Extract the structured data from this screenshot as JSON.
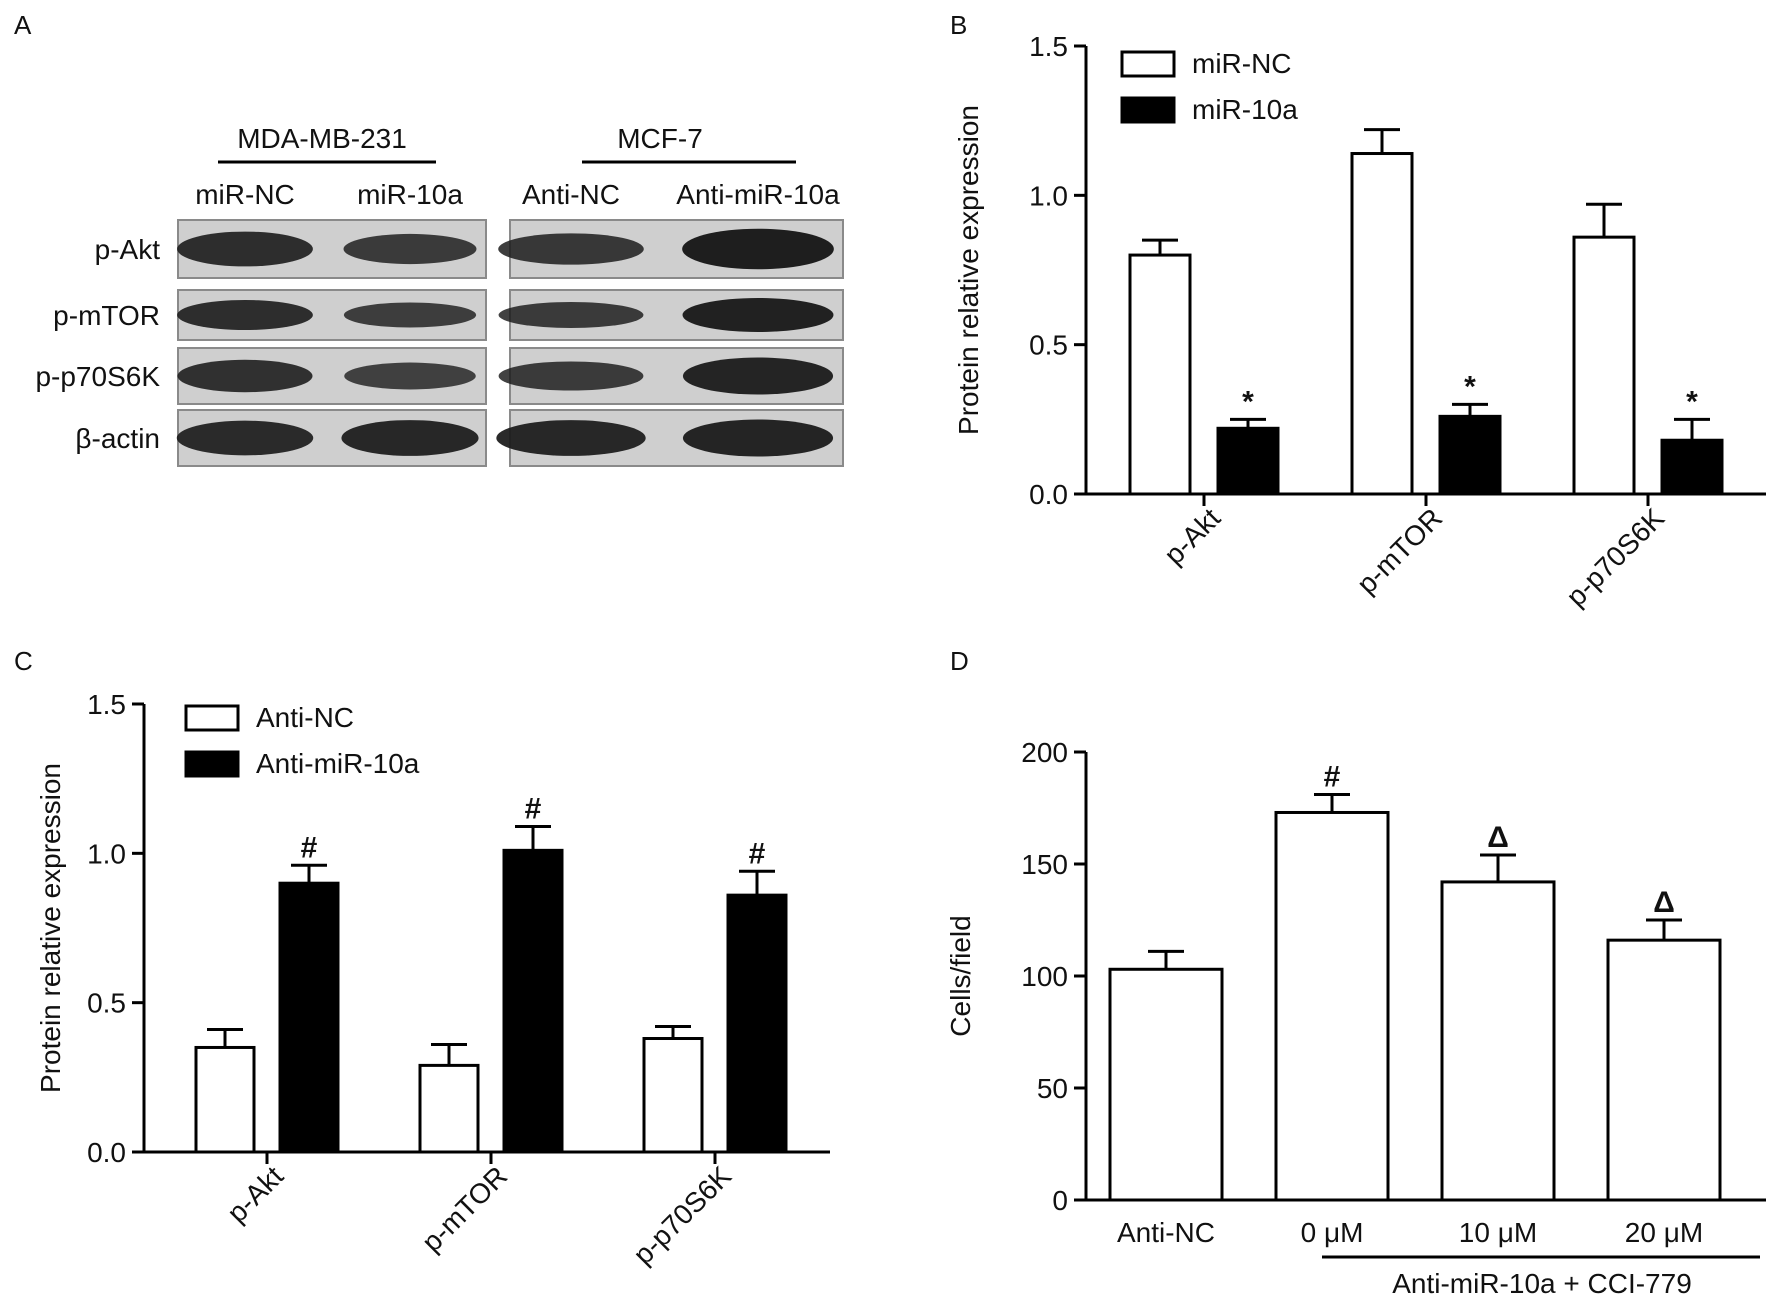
{
  "panels": {
    "a": {
      "letter": "A",
      "groups": [
        {
          "name": "MDA-MB-231",
          "lanes": [
            "miR-NC",
            "miR-10a"
          ]
        },
        {
          "name": "MCF-7",
          "lanes": [
            "Anti-NC",
            "Anti-miR-10a"
          ]
        }
      ],
      "rows": [
        "p-Akt",
        "p-mTOR",
        "p-p70S6K",
        "β-actin"
      ],
      "band_intensity": [
        [
          0.7,
          0.5,
          0.55,
          0.95
        ],
        [
          0.7,
          0.45,
          0.5,
          0.9
        ],
        [
          0.65,
          0.4,
          0.5,
          0.85
        ],
        [
          0.75,
          0.8,
          0.8,
          0.85
        ]
      ]
    },
    "b": {
      "letter": "B"
    },
    "c": {
      "letter": "C"
    },
    "d": {
      "letter": "D",
      "group_label": "Anti-miR-10a + CCI-779"
    }
  },
  "colors": {
    "open_bar": "#ffffff",
    "filled_bar": "#000000",
    "axis": "#000000"
  },
  "chart_data": [
    {
      "panel": "B",
      "type": "bar",
      "categories": [
        "p-Akt",
        "p-mTOR",
        "p-p70S6K"
      ],
      "series": [
        {
          "name": "miR-NC",
          "values": [
            0.8,
            1.14,
            0.86
          ],
          "errors": [
            0.05,
            0.08,
            0.11
          ],
          "marks": [
            "",
            "",
            ""
          ]
        },
        {
          "name": "miR-10a",
          "values": [
            0.22,
            0.26,
            0.18
          ],
          "errors": [
            0.03,
            0.04,
            0.07
          ],
          "marks": [
            "*",
            "*",
            "*"
          ]
        }
      ],
      "ylabel": "Protein relative expression",
      "ylim": [
        0,
        1.5
      ],
      "yticks": [
        "0.0",
        "0.5",
        "1.0",
        "1.5"
      ],
      "legend": "top-left"
    },
    {
      "panel": "C",
      "type": "bar",
      "categories": [
        "p-Akt",
        "p-mTOR",
        "p-p70S6K"
      ],
      "series": [
        {
          "name": "Anti-NC",
          "values": [
            0.35,
            0.29,
            0.38
          ],
          "errors": [
            0.06,
            0.07,
            0.04
          ],
          "marks": [
            "",
            "",
            ""
          ]
        },
        {
          "name": "Anti-miR-10a",
          "values": [
            0.9,
            1.01,
            0.86
          ],
          "errors": [
            0.06,
            0.08,
            0.08
          ],
          "marks": [
            "#",
            "#",
            "#"
          ]
        }
      ],
      "ylabel": "Protein relative expression",
      "ylim": [
        0,
        1.5
      ],
      "yticks": [
        "0.0",
        "0.5",
        "1.0",
        "1.5"
      ],
      "legend": "top-left"
    },
    {
      "panel": "D",
      "type": "bar",
      "categories": [
        "Anti-NC",
        "0 μM",
        "10 μM",
        "20 μM"
      ],
      "series": [
        {
          "values": [
            103,
            173,
            142,
            116
          ],
          "errors": [
            8,
            8,
            12,
            9
          ],
          "marks": [
            "",
            "#",
            "Δ",
            "Δ"
          ]
        }
      ],
      "ylabel": "Cells/field",
      "ylim": [
        0,
        200
      ],
      "yticks": [
        "0",
        "50",
        "100",
        "150",
        "200"
      ]
    }
  ]
}
